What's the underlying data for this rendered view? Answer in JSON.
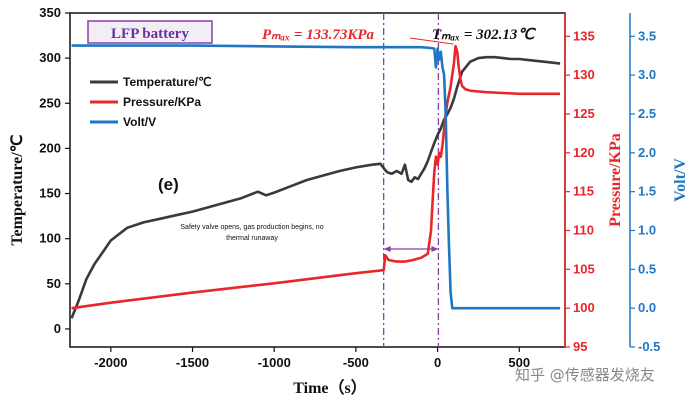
{
  "chart_data": {
    "type": "line",
    "xlabel": "Time（s）",
    "xlim": [
      -2250,
      780
    ],
    "xticks": [
      -2000,
      -1500,
      -1000,
      -500,
      0,
      500
    ],
    "xtick_labels": [
      "-2000",
      "-1500",
      "-1000",
      "-500",
      "0",
      "500"
    ],
    "axes": {
      "left": {
        "label": "Temperature/℃",
        "color": "#111111",
        "ylim": [
          -20,
          350
        ],
        "ticks": [
          0,
          50,
          100,
          150,
          200,
          250,
          300,
          350
        ]
      },
      "right1": {
        "label": "Pressure/KPa",
        "color": "#e8262b",
        "ylim": [
          95,
          138
        ],
        "ticks": [
          95,
          100,
          105,
          110,
          115,
          120,
          125,
          130,
          135
        ]
      },
      "right2": {
        "label": "Volt/V",
        "color": "#1f77c4",
        "ylim": [
          -0.5,
          3.8
        ],
        "ticks": [
          -0.5,
          0.0,
          0.5,
          1.0,
          1.5,
          2.0,
          2.5,
          3.0,
          3.5
        ],
        "tick_labels": [
          "-0.5",
          "0.0",
          "0.5",
          "1.0",
          "1.5",
          "2.0",
          "2.5",
          "3.0",
          "3.5"
        ]
      }
    },
    "series": [
      {
        "name": "Temperature/℃",
        "axis": "left",
        "color": "#3a3a3a",
        "x": [
          -2240,
          -2200,
          -2150,
          -2100,
          -2050,
          -2000,
          -1900,
          -1800,
          -1700,
          -1600,
          -1500,
          -1400,
          -1300,
          -1200,
          -1100,
          -1050,
          -1000,
          -900,
          -800,
          -700,
          -600,
          -500,
          -400,
          -350,
          -320,
          -310,
          -300,
          -280,
          -250,
          -220,
          -200,
          -180,
          -160,
          -140,
          -120,
          -100,
          -80,
          -60,
          -40,
          -20,
          0,
          20,
          40,
          60,
          80,
          100,
          120,
          150,
          200,
          250,
          300,
          350,
          400,
          450,
          500,
          550,
          600,
          650,
          700,
          750
        ],
        "y": [
          12,
          30,
          55,
          72,
          85,
          98,
          112,
          118,
          122,
          126,
          130,
          135,
          140,
          145,
          152,
          148,
          151,
          158,
          165,
          170,
          175,
          179,
          182,
          183,
          176,
          174,
          173,
          172,
          175,
          172,
          182,
          165,
          163,
          168,
          166,
          172,
          178,
          186,
          196,
          206,
          215,
          222,
          232,
          238,
          245,
          255,
          268,
          285,
          296,
          300,
          301,
          301,
          300,
          299,
          299,
          298,
          297,
          296,
          295,
          294
        ]
      },
      {
        "name": "Pressure/KPa",
        "axis": "right1",
        "color": "#e8262b",
        "x": [
          -2240,
          -2000,
          -1500,
          -1000,
          -500,
          -330,
          -320,
          -310,
          -300,
          -250,
          -200,
          -150,
          -100,
          -60,
          -40,
          -30,
          -20,
          -10,
          0,
          10,
          20,
          30,
          40,
          50,
          60,
          80,
          100,
          110,
          120,
          130,
          140,
          150,
          170,
          200,
          250,
          300,
          400,
          500,
          600,
          700,
          750
        ],
        "y": [
          100.0,
          100.7,
          102.0,
          103.2,
          104.5,
          104.9,
          106.8,
          106.5,
          106.2,
          106.0,
          106.0,
          106.2,
          106.5,
          107.0,
          110.0,
          114.0,
          117.5,
          119.5,
          118.5,
          120.0,
          119.5,
          121.0,
          123.0,
          125.0,
          126.5,
          128.5,
          131.5,
          133.73,
          133.0,
          131.0,
          129.5,
          128.6,
          128.2,
          128.0,
          127.9,
          127.8,
          127.7,
          127.6,
          127.6,
          127.6,
          127.6
        ]
      },
      {
        "name": "Volt/V",
        "axis": "right2",
        "color": "#1f77c4",
        "x": [
          -2240,
          -2000,
          -1500,
          -1000,
          -500,
          -100,
          -40,
          -20,
          -10,
          0,
          10,
          20,
          30,
          40,
          50,
          60,
          70,
          80,
          90,
          100,
          750
        ],
        "y": [
          3.38,
          3.38,
          3.38,
          3.37,
          3.36,
          3.36,
          3.35,
          3.34,
          3.1,
          3.34,
          3.2,
          3.3,
          3.1,
          3.0,
          2.5,
          1.5,
          0.8,
          0.2,
          0.0,
          0.0,
          0.0
        ]
      }
    ],
    "legend": {
      "placement": "upper-left",
      "entries": [
        {
          "label": "Temperature/℃",
          "color": "#3a3a3a"
        },
        {
          "label": "Pressure/KPa",
          "color": "#e8262b"
        },
        {
          "label": "Volt/V",
          "color": "#1f77c4"
        }
      ]
    },
    "vlines": [
      {
        "x": -330,
        "color": "#8b3fa8",
        "style": "dash-dot"
      },
      {
        "x": 5,
        "color": "#8b3fa8",
        "style": "dash-dot"
      }
    ],
    "annotations": {
      "badge": "LFP battery",
      "pmax": "Pₘₐₓ = 133.73KPa",
      "tmax": "Tₘₐₓ = 302.13℃",
      "panel": "(e)",
      "note_line1": "Safety valve opens, gas production begins, no",
      "note_line2": "thermal runaway"
    },
    "watermark": "知乎 @传感器发烧友",
    "grid": false
  }
}
